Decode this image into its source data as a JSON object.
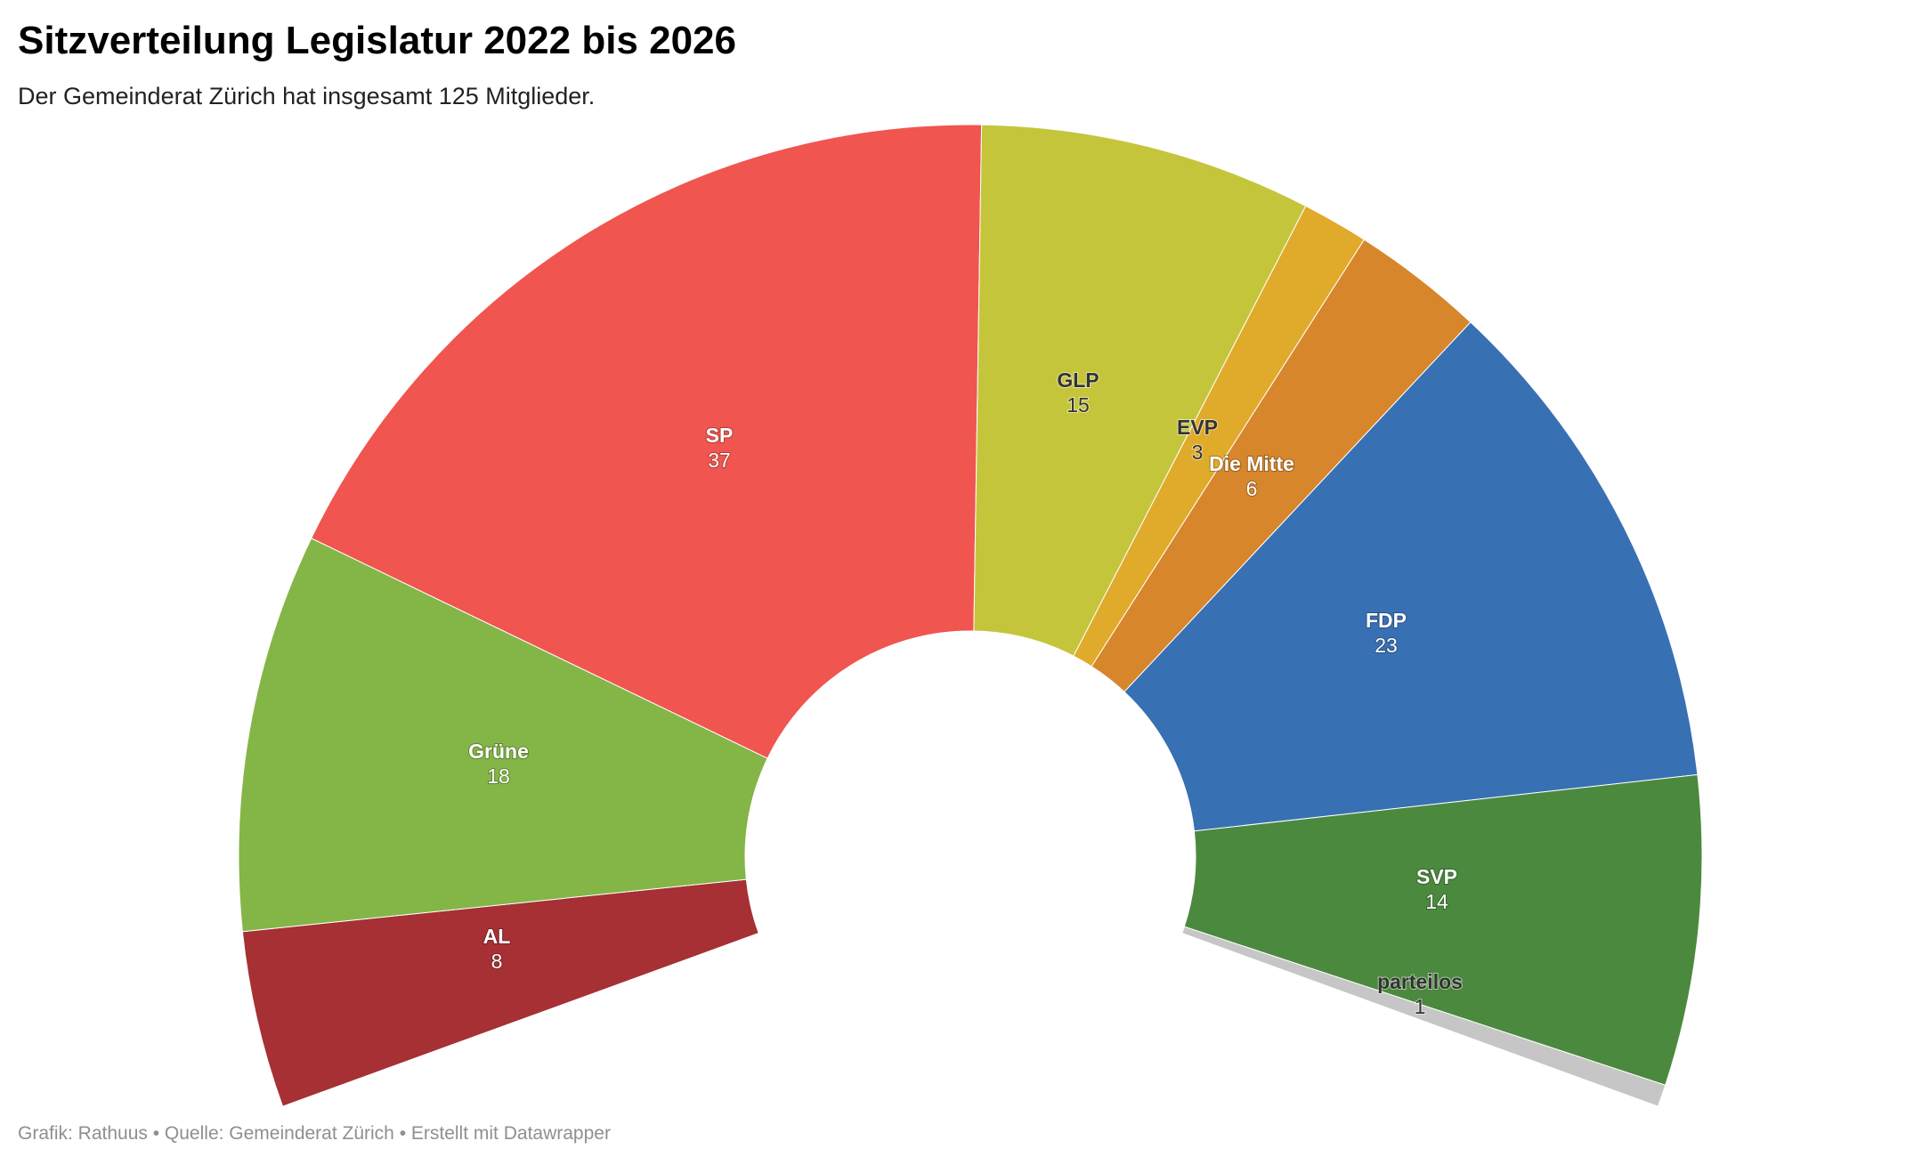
{
  "chart_data": {
    "type": "pie",
    "variant": "half-donut (parliament seat distribution)",
    "title": "Sitzverteilung Legislatur 2022 bis 2026",
    "subtitle": "Der Gemeinderat Zürich hat insgesamt 125 Mitglieder.",
    "total": 125,
    "categories": [
      "AL",
      "Grüne",
      "SP",
      "GLP",
      "EVP",
      "Die Mitte",
      "FDP",
      "SVP",
      "parteilos"
    ],
    "values": [
      8,
      18,
      37,
      15,
      3,
      6,
      23,
      14,
      1
    ],
    "colors": [
      "#a63034",
      "#84b547",
      "#f0554f",
      "#c5c53c",
      "#e0aa2a",
      "#d7862b",
      "#3870b4",
      "#4b893e",
      "#c6c6c6"
    ],
    "label_colors": [
      "#ffffff",
      "#ffffff",
      "#ffffff",
      "#333333",
      "#333333",
      "#ffffff",
      "#ffffff",
      "#ffffff",
      "#333333"
    ],
    "legend": "labels on segments",
    "footer": "Grafik: Rathuus • Quelle: Gemeinderat Zürich • Erstellt mit Datawrapper"
  }
}
